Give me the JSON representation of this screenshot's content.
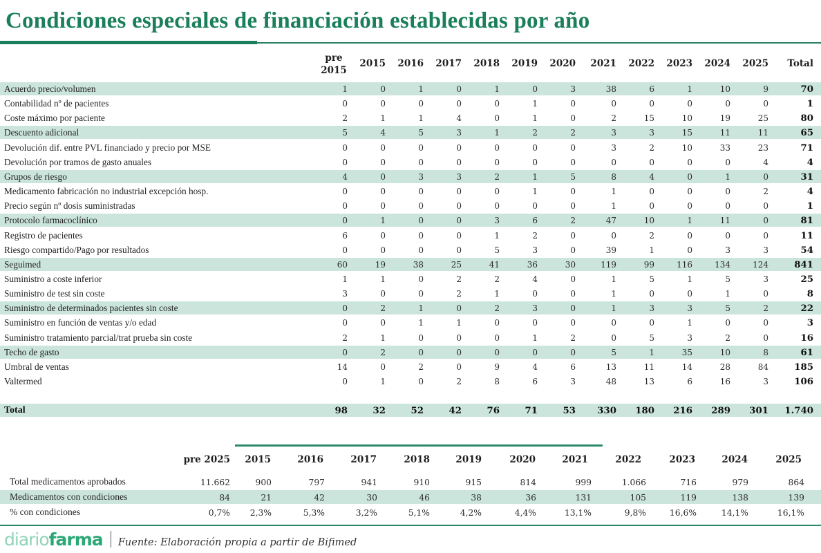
{
  "title": "Condiciones especiales de financiación establecidas por año",
  "colors": {
    "accent": "#1a7f5a",
    "row_shade": "#cbe5dc",
    "logo_light": "#8fd3b8",
    "logo_dark": "#2aa876"
  },
  "table1": {
    "header": {
      "pre_top": "pre",
      "pre_bottom": "2015",
      "years": [
        "2015",
        "2016",
        "2017",
        "2018",
        "2019",
        "2020",
        "2021",
        "2022",
        "2023",
        "2024",
        "2025"
      ],
      "total": "Total"
    },
    "rows": [
      {
        "label": "Acuerdo precio/volumen",
        "values": [
          "1",
          "0",
          "1",
          "0",
          "1",
          "0",
          "3",
          "38",
          "6",
          "1",
          "10",
          "9"
        ],
        "total": "70"
      },
      {
        "label": "Contabilidad nº de pacientes",
        "values": [
          "0",
          "0",
          "0",
          "0",
          "0",
          "1",
          "0",
          "0",
          "0",
          "0",
          "0",
          "0"
        ],
        "total": "1"
      },
      {
        "label": "Coste máximo por paciente",
        "values": [
          "2",
          "1",
          "1",
          "4",
          "0",
          "1",
          "0",
          "2",
          "15",
          "10",
          "19",
          "25"
        ],
        "total": "80"
      },
      {
        "label": "Descuento adicional",
        "values": [
          "5",
          "4",
          "5",
          "3",
          "1",
          "2",
          "2",
          "3",
          "3",
          "15",
          "11",
          "11"
        ],
        "total": "65"
      },
      {
        "label": "Devolución dif. entre PVL financiado y precio por MSE",
        "values": [
          "0",
          "0",
          "0",
          "0",
          "0",
          "0",
          "0",
          "3",
          "2",
          "10",
          "33",
          "23"
        ],
        "total": "71"
      },
      {
        "label": "Devolución por tramos de gasto anuales",
        "values": [
          "0",
          "0",
          "0",
          "0",
          "0",
          "0",
          "0",
          "0",
          "0",
          "0",
          "0",
          "4"
        ],
        "total": "4"
      },
      {
        "label": "Grupos de riesgo",
        "values": [
          "4",
          "0",
          "3",
          "3",
          "2",
          "1",
          "5",
          "8",
          "4",
          "0",
          "1",
          "0"
        ],
        "total": "31"
      },
      {
        "label": "Medicamento fabricación no industrial excepción hosp.",
        "values": [
          "0",
          "0",
          "0",
          "0",
          "0",
          "1",
          "0",
          "1",
          "0",
          "0",
          "0",
          "2"
        ],
        "total": "4"
      },
      {
        "label": "Precio según nº dosis suministradas",
        "values": [
          "0",
          "0",
          "0",
          "0",
          "0",
          "0",
          "0",
          "1",
          "0",
          "0",
          "0",
          "0"
        ],
        "total": "1"
      },
      {
        "label": "Protocolo farmacoclínico",
        "values": [
          "0",
          "1",
          "0",
          "0",
          "3",
          "6",
          "2",
          "47",
          "10",
          "1",
          "11",
          "0"
        ],
        "total": "81"
      },
      {
        "label": "Registro de pacientes",
        "values": [
          "6",
          "0",
          "0",
          "0",
          "1",
          "2",
          "0",
          "0",
          "2",
          "0",
          "0",
          "0"
        ],
        "total": "11"
      },
      {
        "label": "Riesgo compartido/Pago por resultados",
        "values": [
          "0",
          "0",
          "0",
          "0",
          "5",
          "3",
          "0",
          "39",
          "1",
          "0",
          "3",
          "3"
        ],
        "total": "54"
      },
      {
        "label": "Seguimed",
        "values": [
          "60",
          "19",
          "38",
          "25",
          "41",
          "36",
          "30",
          "119",
          "99",
          "116",
          "134",
          "124"
        ],
        "total": "841"
      },
      {
        "label": "Suministro a coste inferior",
        "values": [
          "1",
          "1",
          "0",
          "2",
          "2",
          "4",
          "0",
          "1",
          "5",
          "1",
          "5",
          "3"
        ],
        "total": "25"
      },
      {
        "label": "Suministro de test sin coste",
        "values": [
          "3",
          "0",
          "0",
          "2",
          "1",
          "0",
          "0",
          "1",
          "0",
          "0",
          "1",
          "0"
        ],
        "total": "8"
      },
      {
        "label": "Suministro de determinados pacientes sin coste",
        "values": [
          "0",
          "2",
          "1",
          "0",
          "2",
          "3",
          "0",
          "1",
          "3",
          "3",
          "5",
          "2"
        ],
        "total": "22"
      },
      {
        "label": "Suministro en función de ventas y/o edad",
        "values": [
          "0",
          "0",
          "1",
          "1",
          "0",
          "0",
          "0",
          "0",
          "0",
          "1",
          "0",
          "0"
        ],
        "total": "3"
      },
      {
        "label": "Suministro tratamiento parcial/trat prueba sin coste",
        "values": [
          "2",
          "1",
          "0",
          "0",
          "0",
          "1",
          "2",
          "0",
          "5",
          "3",
          "2",
          "0"
        ],
        "total": "16"
      },
      {
        "label": "Techo de gasto",
        "values": [
          "0",
          "2",
          "0",
          "0",
          "0",
          "0",
          "0",
          "5",
          "1",
          "35",
          "10",
          "8"
        ],
        "total": "61"
      },
      {
        "label": "Umbral de ventas",
        "values": [
          "14",
          "0",
          "2",
          "0",
          "9",
          "4",
          "6",
          "13",
          "11",
          "14",
          "28",
          "84"
        ],
        "total": "185"
      },
      {
        "label": "Valtermed",
        "values": [
          "0",
          "1",
          "0",
          "2",
          "8",
          "6",
          "3",
          "48",
          "13",
          "6",
          "16",
          "3"
        ],
        "total": "106"
      }
    ],
    "total_row": {
      "label": "Total",
      "values": [
        "98",
        "32",
        "52",
        "42",
        "76",
        "71",
        "53",
        "330",
        "180",
        "216",
        "289",
        "301"
      ],
      "total": "1.740"
    }
  },
  "table2": {
    "header": [
      "pre 2025",
      "2015",
      "2016",
      "2017",
      "2018",
      "2019",
      "2020",
      "2021",
      "2022",
      "2023",
      "2024",
      "2025"
    ],
    "rows": [
      {
        "label": "Total medicamentos aprobados",
        "values": [
          "11.662",
          "900",
          "797",
          "941",
          "910",
          "915",
          "814",
          "999",
          "1.066",
          "716",
          "979",
          "864"
        ]
      },
      {
        "label": "Medicamentos con condiciones",
        "values": [
          "84",
          "21",
          "42",
          "30",
          "46",
          "38",
          "36",
          "131",
          "105",
          "119",
          "138",
          "139"
        ]
      },
      {
        "label": "% con condiciones",
        "values": [
          "0,7%",
          "2,3%",
          "5,3%",
          "3,2%",
          "5,1%",
          "4,2%",
          "4,4%",
          "13,1%",
          "9,8%",
          "16,6%",
          "14,1%",
          "16,1%"
        ]
      }
    ]
  },
  "footer": {
    "logo_light": "diario",
    "logo_bold": "farma",
    "source": "Fuente: Elaboración propia a partir de Bifimed"
  }
}
